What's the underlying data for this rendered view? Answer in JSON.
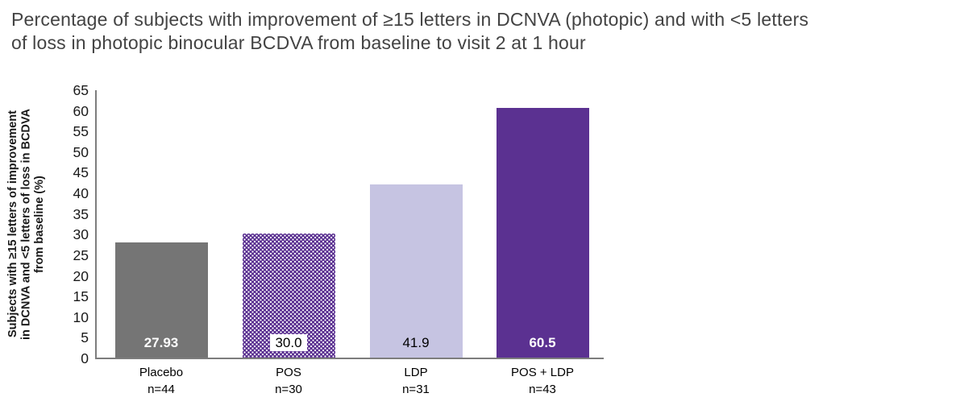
{
  "title": "Percentage of subjects with improvement of ≥15 letters in DCNVA (photopic) and with <5 letters of loss in photopic binocular BCDVA from baseline to visit 2 at 1 hour",
  "title_lines": [
    "Percentage of subjects with improvement of ≥15 letters in DCNVA (photopic) and with <5 letters",
    "of loss in photopic binocular BCDVA from baseline to visit 2 at 1 hour"
  ],
  "chart_data": {
    "type": "bar",
    "title": "Percentage of subjects with improvement of ≥15 letters in DCNVA (photopic) and with <5 letters of loss in photopic binocular BCDVA from baseline to visit 2 at 1 hour",
    "xlabel": "",
    "ylabel": "Subjects with ≥15 letters of improvement in DCNVA and <5 letters of loss in BCDVA from baseline (%)",
    "ylabel_lines": [
      "Subjects with ≥15 letters of improvement",
      "in DCNVA and <5 letters of loss in BCDVA",
      "from baseline (%)"
    ],
    "ylim": [
      0,
      65
    ],
    "ytick_step": 5,
    "yticks": [
      0,
      5,
      10,
      15,
      20,
      25,
      30,
      35,
      40,
      45,
      50,
      55,
      60,
      65
    ],
    "grid": false,
    "legend_position": "none",
    "categories": [
      "Placebo",
      "POS",
      "LDP",
      "POS + LDP"
    ],
    "n_labels": [
      "n=44",
      "n=30",
      "n=31",
      "n=43"
    ],
    "values": [
      27.93,
      30.0,
      41.9,
      60.5
    ],
    "bars": [
      {
        "category": "Placebo",
        "n": "n=44",
        "value": 27.93,
        "label": "27.93",
        "fill": "#757575",
        "pattern": "solid",
        "label_color": "#ffffff",
        "label_boxed": false,
        "label_bold": true
      },
      {
        "category": "POS",
        "n": "n=30",
        "value": 30.0,
        "label": "30.0",
        "fill": "#5b3191",
        "pattern": "white-dots",
        "label_color": "#000000",
        "label_boxed": true,
        "label_bold": false
      },
      {
        "category": "LDP",
        "n": "n=31",
        "value": 41.9,
        "label": "41.9",
        "fill": "#c6c4e2",
        "pattern": "solid",
        "label_color": "#000000",
        "label_boxed": false,
        "label_bold": false
      },
      {
        "category": "POS + LDP",
        "n": "n=43",
        "value": 60.5,
        "label": "60.5",
        "fill": "#5b3191",
        "pattern": "solid",
        "label_color": "#ffffff",
        "label_boxed": false,
        "label_bold": true
      }
    ],
    "colors": {
      "placebo_bar": "#757575",
      "purple_bar": "#5b3191",
      "lavender_bar": "#c6c4e2",
      "axis_line": "#7d7d7d",
      "title_text": "#434343",
      "axis_text": "#1a1a1a"
    }
  }
}
